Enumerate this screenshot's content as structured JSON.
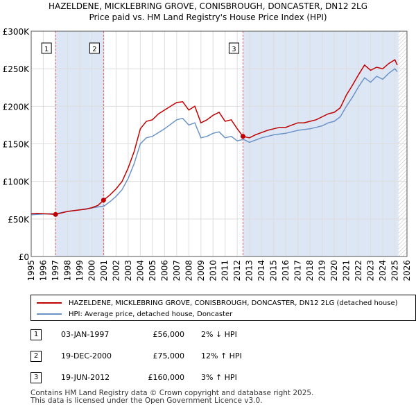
{
  "header": {
    "title_line1": "HAZELDENE, MICKLEBRING GROVE, CONISBROUGH, DONCASTER, DN12 2LG",
    "title_line2": "Price paid vs. HM Land Registry's House Price Index (HPI)"
  },
  "colors": {
    "property": "#c00000",
    "hpi": "#6a93c8",
    "shade": "#dde6f5",
    "hatch": "#bbbbbb",
    "marker_line": "#e06060",
    "grid": "#dddddd"
  },
  "chart_data": {
    "type": "line",
    "title": "Price paid vs. HM Land Registry's House Price Index (HPI)",
    "xlabel": "",
    "ylabel": "",
    "xlim": [
      1995,
      2026
    ],
    "ylim": [
      0,
      300000
    ],
    "x_ticks": [
      1995,
      1996,
      1997,
      1998,
      1999,
      2000,
      2001,
      2002,
      2003,
      2004,
      2005,
      2006,
      2007,
      2008,
      2009,
      2010,
      2011,
      2012,
      2013,
      2014,
      2015,
      2016,
      2017,
      2018,
      2019,
      2020,
      2021,
      2022,
      2023,
      2024,
      2025,
      2026
    ],
    "y_ticks": [
      0,
      50000,
      100000,
      150000,
      200000,
      250000,
      300000
    ],
    "y_tick_labels": [
      "£0",
      "£50K",
      "£100K",
      "£150K",
      "£200K",
      "£250K",
      "£300K"
    ],
    "shaded_ranges": [
      [
        1997.01,
        2000.97
      ],
      [
        2012.47,
        2025.3
      ]
    ],
    "future_hatch_from": 2025.3,
    "series": [
      {
        "name": "HAZELDENE, MICKLEBRING GROVE, CONISBROUGH, DONCASTER, DN12 2LG (detached house)",
        "color": "#c00000",
        "x": [
          1995.0,
          1995.5,
          1996.0,
          1996.5,
          1997.01,
          1997.5,
          1998.0,
          1998.5,
          1999.0,
          1999.5,
          2000.0,
          2000.5,
          2000.97,
          2001.5,
          2002.0,
          2002.5,
          2003.0,
          2003.5,
          2004.0,
          2004.5,
          2005.0,
          2005.5,
          2006.0,
          2006.5,
          2007.0,
          2007.5,
          2008.0,
          2008.5,
          2009.0,
          2009.5,
          2010.0,
          2010.5,
          2011.0,
          2011.5,
          2012.0,
          2012.47,
          2013.0,
          2013.5,
          2014.0,
          2014.5,
          2015.0,
          2015.5,
          2016.0,
          2016.5,
          2017.0,
          2017.5,
          2018.0,
          2018.5,
          2019.0,
          2019.5,
          2020.0,
          2020.5,
          2021.0,
          2021.5,
          2022.0,
          2022.5,
          2023.0,
          2023.5,
          2024.0,
          2024.5,
          2025.0,
          2025.2
        ],
        "values": [
          57000,
          57500,
          57000,
          56500,
          56000,
          58000,
          60000,
          61000,
          62000,
          63000,
          65000,
          68000,
          75000,
          82000,
          90000,
          100000,
          118000,
          140000,
          170000,
          180000,
          182000,
          190000,
          195000,
          200000,
          205000,
          206000,
          195000,
          200000,
          178000,
          182000,
          188000,
          192000,
          180000,
          182000,
          170000,
          160000,
          158000,
          162000,
          165000,
          168000,
          170000,
          172000,
          172000,
          175000,
          178000,
          178000,
          180000,
          182000,
          186000,
          190000,
          192000,
          198000,
          215000,
          228000,
          242000,
          255000,
          248000,
          252000,
          250000,
          257000,
          262000,
          255000
        ]
      },
      {
        "name": "HPI: Average price, detached house, Doncaster",
        "color": "#6a93c8",
        "x": [
          1995.0,
          1995.5,
          1996.0,
          1996.5,
          1997.0,
          1997.5,
          1998.0,
          1998.5,
          1999.0,
          1999.5,
          2000.0,
          2000.5,
          2001.0,
          2001.5,
          2002.0,
          2002.5,
          2003.0,
          2003.5,
          2004.0,
          2004.5,
          2005.0,
          2005.5,
          2006.0,
          2006.5,
          2007.0,
          2007.5,
          2008.0,
          2008.5,
          2009.0,
          2009.5,
          2010.0,
          2010.5,
          2011.0,
          2011.5,
          2012.0,
          2012.5,
          2013.0,
          2013.5,
          2014.0,
          2014.5,
          2015.0,
          2015.5,
          2016.0,
          2016.5,
          2017.0,
          2017.5,
          2018.0,
          2018.5,
          2019.0,
          2019.5,
          2020.0,
          2020.5,
          2021.0,
          2021.5,
          2022.0,
          2022.5,
          2023.0,
          2023.5,
          2024.0,
          2024.5,
          2025.0,
          2025.2
        ],
        "values": [
          55500,
          56000,
          56500,
          57000,
          57000,
          58500,
          60000,
          61000,
          62000,
          63500,
          64500,
          66000,
          67000,
          73000,
          80000,
          89000,
          104000,
          124000,
          150000,
          158000,
          160000,
          165000,
          170000,
          176000,
          182000,
          184000,
          175000,
          178000,
          158000,
          160000,
          164000,
          166000,
          158000,
          160000,
          154000,
          156000,
          152000,
          155000,
          158000,
          160000,
          162000,
          163000,
          164000,
          166000,
          168000,
          169000,
          170000,
          172000,
          174000,
          178000,
          180000,
          186000,
          200000,
          212000,
          226000,
          238000,
          232000,
          240000,
          236000,
          244000,
          250000,
          246000
        ]
      }
    ],
    "sale_points": [
      {
        "label": "1",
        "x": 1997.01,
        "y": 56000
      },
      {
        "label": "2",
        "x": 2000.97,
        "y": 75000
      },
      {
        "label": "3",
        "x": 2012.47,
        "y": 160000
      }
    ]
  },
  "legend": {
    "property_label": "HAZELDENE, MICKLEBRING GROVE, CONISBROUGH, DONCASTER, DN12 2LG (detached house)",
    "hpi_label": "HPI: Average price, detached house, Doncaster"
  },
  "transactions": [
    {
      "num": "1",
      "date": "03-JAN-1997",
      "price": "£56,000",
      "hpi": "2% ↓ HPI"
    },
    {
      "num": "2",
      "date": "19-DEC-2000",
      "price": "£75,000",
      "hpi": "12% ↑ HPI"
    },
    {
      "num": "3",
      "date": "19-JUN-2012",
      "price": "£160,000",
      "hpi": "3% ↑ HPI"
    }
  ],
  "footer": {
    "line1": "Contains HM Land Registry data © Crown copyright and database right 2025.",
    "line2": "This data is licensed under the Open Government Licence v3.0."
  }
}
